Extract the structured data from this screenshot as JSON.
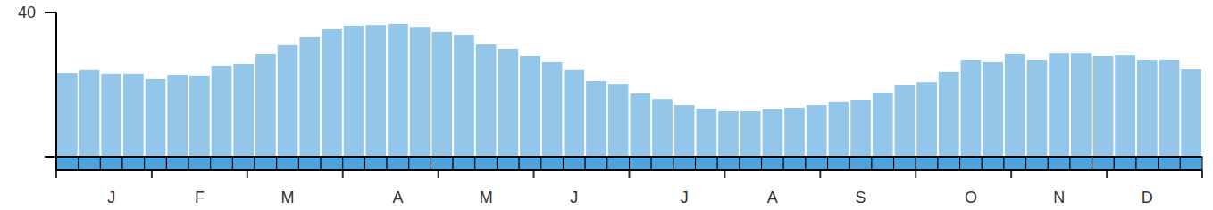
{
  "chart_data": {
    "type": "bar",
    "categories": [
      null,
      null,
      "J",
      null,
      null,
      null,
      "F",
      null,
      null,
      null,
      "M",
      null,
      null,
      null,
      null,
      "A",
      null,
      null,
      null,
      "M",
      null,
      null,
      null,
      "J",
      null,
      null,
      null,
      null,
      "J",
      null,
      null,
      null,
      "A",
      null,
      null,
      null,
      "S",
      null,
      null,
      null,
      null,
      "O",
      null,
      null,
      null,
      "N",
      null,
      null,
      null,
      "D",
      null,
      null
    ],
    "values": [
      23.2,
      24.0,
      23.0,
      23.0,
      21.5,
      22.7,
      22.5,
      25.2,
      25.7,
      28.4,
      30.9,
      33.1,
      35.3,
      36.3,
      36.5,
      36.8,
      36.0,
      34.6,
      33.8,
      31.1,
      29.9,
      27.9,
      26.2,
      24.0,
      21.0,
      20.2,
      17.5,
      16.0,
      14.3,
      13.3,
      12.6,
      12.6,
      13.1,
      13.6,
      14.3,
      15.1,
      15.8,
      17.8,
      19.8,
      20.7,
      23.5,
      26.9,
      26.2,
      28.4,
      26.9,
      28.6,
      28.6,
      27.9,
      28.1,
      26.9,
      26.9,
      24.2
    ],
    "color": "#93c6e8",
    "ylim": [
      0,
      40
    ],
    "yticks": [
      40
    ],
    "grid": false
  }
}
